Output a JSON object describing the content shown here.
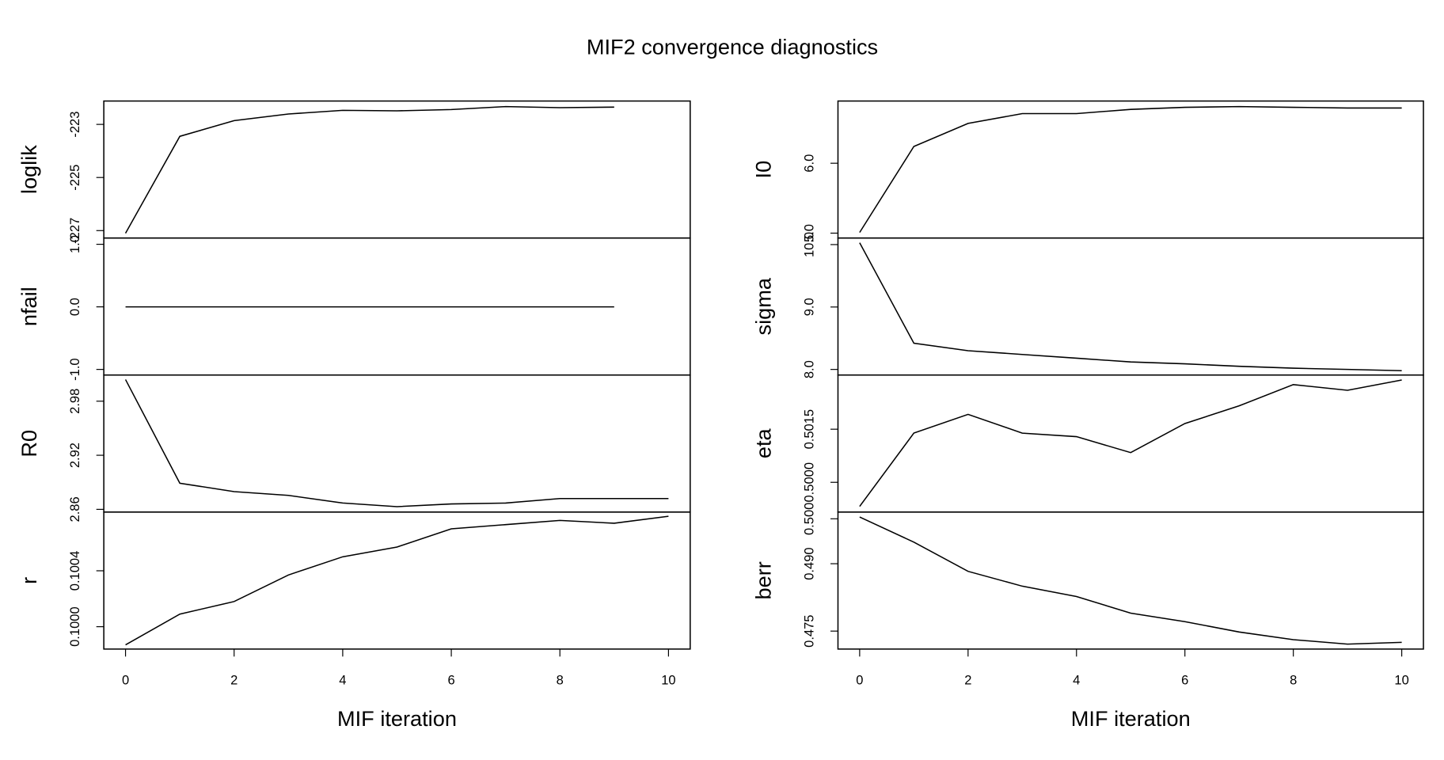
{
  "title": "MIF2 convergence diagnostics",
  "chart_data": [
    {
      "type": "line",
      "ylabel": "loglik",
      "x": [
        0,
        1,
        2,
        3,
        4,
        5,
        6,
        7,
        8,
        9
      ],
      "values": [
        -227.1,
        -223.45,
        -222.86,
        -222.61,
        -222.47,
        -222.49,
        -222.44,
        -222.33,
        -222.37,
        -222.35
      ],
      "xlim": [
        -0.4,
        10.4
      ],
      "ylim": [
        -227.28,
        -222.12
      ],
      "yticks": [
        -227,
        -225,
        -223
      ]
    },
    {
      "type": "line",
      "ylabel": "nfail",
      "x": [
        0,
        1,
        2,
        3,
        4,
        5,
        6,
        7,
        8,
        9
      ],
      "values": [
        0,
        0,
        0,
        0,
        0,
        0,
        0,
        0,
        0,
        0
      ],
      "xlim": [
        -0.4,
        10.4
      ],
      "ylim": [
        -1.09,
        1.1
      ],
      "yticks": [
        {
          "value": -1,
          "label": "-1.0"
        },
        {
          "value": 0,
          "label": "0.0"
        },
        {
          "value": 1,
          "label": "1.0"
        }
      ]
    },
    {
      "type": "line",
      "ylabel": "R0",
      "x": [
        0,
        1,
        2,
        3,
        4,
        5,
        6,
        7,
        8,
        9,
        10
      ],
      "values": [
        3.004,
        2.889,
        2.8797,
        2.8755,
        2.867,
        2.863,
        2.866,
        2.867,
        2.872,
        2.872,
        2.872
      ],
      "xlim": [
        -0.4,
        10.4
      ],
      "ylim": [
        2.857,
        3.009
      ],
      "yticks": [
        2.86,
        2.92,
        2.98
      ]
    },
    {
      "type": "line",
      "ylabel": "r",
      "x": [
        0,
        1,
        2,
        3,
        4,
        5,
        6,
        7,
        8,
        9,
        10
      ],
      "values": [
        0.09987,
        0.10009,
        0.10018,
        0.10037,
        0.1005,
        0.10057,
        0.1007,
        0.10073,
        0.10076,
        0.10074,
        0.10079
      ],
      "xlim": [
        -0.4,
        10.4
      ],
      "ylim": [
        0.09984,
        0.10082
      ],
      "yticks": [
        {
          "value": 0.1,
          "label": "0.1000"
        },
        {
          "value": 0.1004,
          "label": "0.1004"
        }
      ],
      "xticks": [
        0,
        2,
        4,
        6,
        8,
        10
      ],
      "xlabel": "MIF iteration"
    },
    {
      "type": "line",
      "ylabel": "I0",
      "x": [
        0,
        1,
        2,
        3,
        4,
        5,
        6,
        7,
        8,
        9,
        10
      ],
      "values": [
        5.01,
        6.24,
        6.57,
        6.71,
        6.71,
        6.77,
        6.8,
        6.81,
        6.8,
        6.79,
        6.79
      ],
      "xlim": [
        -0.4,
        10.4
      ],
      "ylim": [
        4.93,
        6.89
      ],
      "yticks": [
        {
          "value": 5,
          "label": "5.0"
        },
        {
          "value": 6,
          "label": "6.0"
        }
      ]
    },
    {
      "type": "line",
      "ylabel": "sigma",
      "x": [
        0,
        1,
        2,
        3,
        4,
        5,
        6,
        7,
        8,
        9,
        10
      ],
      "values": [
        10.03,
        8.42,
        8.3,
        8.24,
        8.18,
        8.12,
        8.09,
        8.05,
        8.02,
        8.0,
        7.98
      ],
      "xlim": [
        -0.4,
        10.4
      ],
      "ylim": [
        7.91,
        10.105
      ],
      "yticks": [
        {
          "value": 8,
          "label": "8.0"
        },
        {
          "value": 9,
          "label": "9.0"
        },
        {
          "value": 10,
          "label": "10.0"
        }
      ]
    },
    {
      "type": "line",
      "ylabel": "eta",
      "x": [
        0,
        1,
        2,
        3,
        4,
        5,
        6,
        7,
        8,
        9,
        10
      ],
      "values": [
        0.49932,
        0.50139,
        0.50192,
        0.50139,
        0.50129,
        0.50084,
        0.50166,
        0.50216,
        0.50276,
        0.5026,
        0.50289
      ],
      "xlim": [
        -0.4,
        10.4
      ],
      "ylim": [
        0.49916,
        0.50303
      ],
      "yticks": [
        {
          "value": 0.5,
          "label": "0.5000"
        },
        {
          "value": 0.5015,
          "label": "0.5015"
        }
      ]
    },
    {
      "type": "line",
      "ylabel": "berr",
      "x": [
        0,
        1,
        2,
        3,
        4,
        5,
        6,
        7,
        8,
        9,
        10
      ],
      "values": [
        0.5004,
        0.4948,
        0.4883,
        0.485,
        0.4827,
        0.479,
        0.4771,
        0.4748,
        0.4731,
        0.4721,
        0.4725
      ],
      "xlim": [
        -0.4,
        10.4
      ],
      "ylim": [
        0.471,
        0.5015
      ],
      "yticks": [
        {
          "value": 0.475,
          "label": "0.475"
        },
        {
          "value": 0.49,
          "label": "0.490"
        },
        {
          "value": 0.5,
          "label": "0.500"
        }
      ],
      "xticks": [
        0,
        2,
        4,
        6,
        8,
        10
      ],
      "xlabel": "MIF iteration"
    }
  ]
}
